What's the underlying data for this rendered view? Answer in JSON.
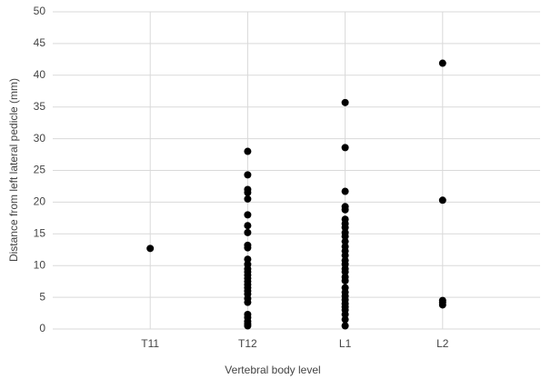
{
  "chart_data": {
    "type": "strip",
    "x_label": "Vertebral body level",
    "y_label": "Distance from left lateral pedicle (mm)",
    "categories": [
      "T11",
      "T12",
      "L1",
      "L2"
    ],
    "values": [
      [
        12.7
      ],
      [
        28,
        24.3,
        22,
        21.5,
        20.5,
        18,
        16.3,
        15.2,
        13.2,
        12.8,
        11,
        10.2,
        9.5,
        9,
        8.5,
        8,
        7.5,
        7,
        6.5,
        6,
        5.5,
        4.8,
        4.2,
        2.3,
        1.8,
        1.2,
        0.8,
        0.5
      ],
      [
        35.7,
        28.6,
        21.7,
        19.3,
        18.8,
        17.3,
        16.6,
        16,
        15.2,
        14.6,
        13.8,
        13,
        12.3,
        11.6,
        10.8,
        10.2,
        9.5,
        9,
        8.2,
        7.6,
        6.5,
        5.8,
        5.2,
        4.6,
        4,
        3.5,
        3,
        2.3,
        1.5,
        0.5
      ],
      [
        41.9,
        20.3,
        4.5,
        4.2,
        3.8
      ]
    ],
    "color": "#000000",
    "ylim": [
      0,
      50
    ],
    "yticks": [
      0,
      5,
      10,
      15,
      20,
      25,
      30,
      35,
      40,
      45,
      50
    ],
    "grid": true
  }
}
